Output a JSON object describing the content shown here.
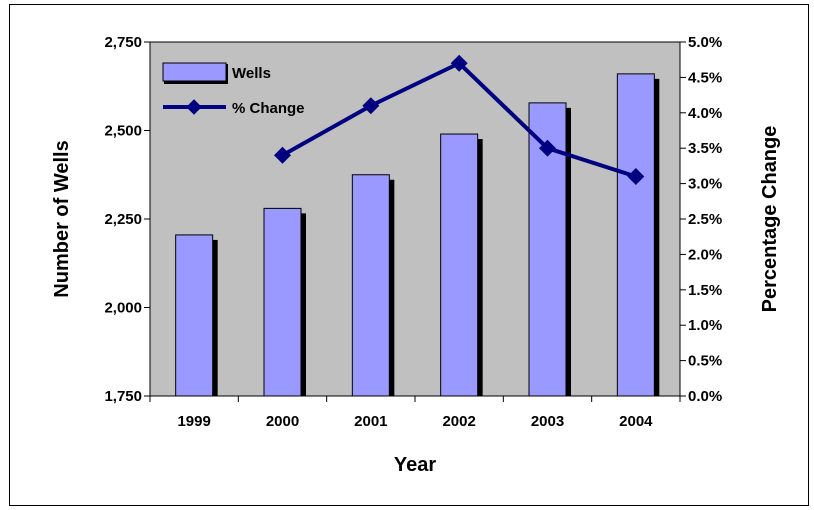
{
  "chart_data": {
    "type": "bar+line",
    "categories": [
      "1999",
      "2000",
      "2001",
      "2002",
      "2003",
      "2004"
    ],
    "series": [
      {
        "name": "Wells",
        "type": "bar",
        "axis": "left",
        "values": [
          2205,
          2280,
          2375,
          2490,
          2578,
          2660
        ]
      },
      {
        "name": "% Change",
        "type": "line",
        "axis": "right",
        "values": [
          null,
          3.4,
          4.1,
          4.7,
          3.5,
          3.1
        ]
      }
    ],
    "xlabel": "Year",
    "ylabel": "Number of Wells",
    "y2label": "Percentage Change",
    "ylim": [
      1750,
      2750
    ],
    "y2lim": [
      0,
      5
    ],
    "yticks": [
      "1,750",
      "2,000",
      "2,250",
      "2,500",
      "2,750"
    ],
    "y2ticks": [
      "0.0%",
      "0.5%",
      "1.0%",
      "1.5%",
      "2.0%",
      "2.5%",
      "3.0%",
      "3.5%",
      "4.0%",
      "4.5%",
      "5.0%"
    ],
    "legend_position": "top-left inside plot",
    "grid": false,
    "colors": {
      "plot_background": "#c0c0c0",
      "bar_fill": "#9999ff",
      "bar_shadow": "#000000",
      "line": "#000080"
    }
  }
}
